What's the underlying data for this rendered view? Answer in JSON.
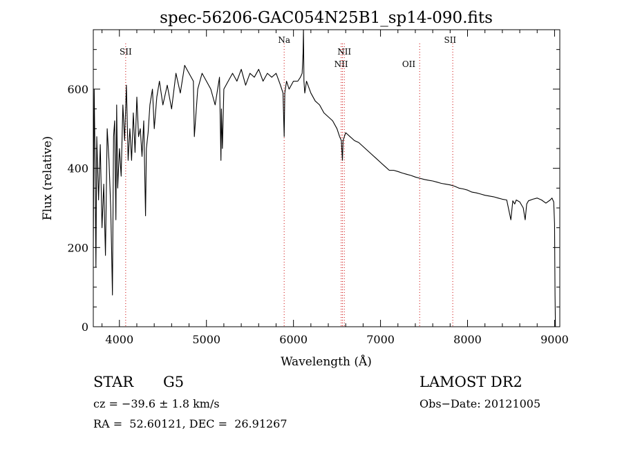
{
  "chart_data": {
    "type": "line",
    "title": "spec-56206-GAC054N25B1_sp14-090.fits",
    "xlabel": "Wavelength (Å)",
    "ylabel": "Flux (relative)",
    "xlim": [
      3700,
      9060
    ],
    "ylim": [
      0,
      750
    ],
    "xticks": [
      4000,
      5000,
      6000,
      7000,
      8000,
      9000
    ],
    "yticks": [
      0,
      200,
      400,
      600
    ],
    "grid": false,
    "series_color": "#000000",
    "line_color": "#cc0000",
    "series": [
      {
        "x": [
          3700,
          3710,
          3720,
          3730,
          3740,
          3760,
          3780,
          3800,
          3820,
          3840,
          3860,
          3880,
          3900,
          3910,
          3920,
          3933,
          3945,
          3960,
          3968,
          3980,
          4000,
          4020,
          4040,
          4060,
          4080,
          4100,
          4120,
          4140,
          4160,
          4180,
          4200,
          4220,
          4240,
          4260,
          4280,
          4300,
          4310,
          4330,
          4350,
          4380,
          4400,
          4430,
          4460,
          4500,
          4550,
          4600,
          4650,
          4700,
          4750,
          4800,
          4850,
          4861,
          4900,
          4950,
          5000,
          5050,
          5100,
          5150,
          5167,
          5172,
          5183,
          5200,
          5250,
          5300,
          5350,
          5400,
          5450,
          5500,
          5550,
          5600,
          5650,
          5700,
          5750,
          5800,
          5850,
          5880,
          5893,
          5900,
          5920,
          5950,
          6000,
          6050,
          6080,
          6100,
          6110,
          6115,
          6120,
          6130,
          6150,
          6200,
          6250,
          6300,
          6350,
          6400,
          6450,
          6500,
          6530,
          6550,
          6563,
          6570,
          6600,
          6650,
          6700,
          6750,
          6800,
          6850,
          6900,
          6950,
          7000,
          7050,
          7100,
          7150,
          7200,
          7250,
          7300,
          7350,
          7400,
          7450,
          7500,
          7550,
          7600,
          7650,
          7700,
          7750,
          7800,
          7850,
          7900,
          7950,
          8000,
          8050,
          8100,
          8150,
          8200,
          8250,
          8300,
          8350,
          8400,
          8450,
          8498,
          8520,
          8542,
          8560,
          8600,
          8640,
          8662,
          8680,
          8700,
          8750,
          8800,
          8850,
          8900,
          8950,
          8970,
          8990,
          9000,
          9005,
          9010
        ],
        "y": [
          200,
          600,
          420,
          150,
          480,
          320,
          460,
          250,
          360,
          180,
          500,
          420,
          300,
          200,
          80,
          480,
          520,
          270,
          560,
          350,
          450,
          380,
          560,
          470,
          610,
          420,
          500,
          420,
          540,
          440,
          580,
          480,
          500,
          430,
          520,
          280,
          450,
          490,
          560,
          600,
          500,
          580,
          620,
          560,
          610,
          550,
          640,
          590,
          660,
          640,
          620,
          480,
          600,
          640,
          620,
          600,
          560,
          630,
          420,
          550,
          450,
          600,
          620,
          640,
          620,
          650,
          610,
          640,
          630,
          650,
          620,
          640,
          630,
          640,
          610,
          590,
          480,
          590,
          620,
          600,
          620,
          620,
          630,
          640,
          690,
          750,
          620,
          590,
          620,
          590,
          570,
          560,
          540,
          530,
          520,
          500,
          480,
          470,
          420,
          470,
          490,
          480,
          470,
          465,
          455,
          445,
          435,
          425,
          415,
          405,
          395,
          395,
          392,
          388,
          385,
          382,
          378,
          375,
          372,
          370,
          368,
          365,
          362,
          360,
          358,
          355,
          350,
          348,
          345,
          340,
          338,
          335,
          332,
          330,
          328,
          325,
          322,
          320,
          270,
          318,
          310,
          320,
          315,
          300,
          270,
          310,
          318,
          322,
          325,
          320,
          312,
          320,
          325,
          315,
          260,
          80,
          0
        ]
      }
    ],
    "annotations": [
      {
        "label": "SII",
        "x": 4072,
        "row": 1
      },
      {
        "label": "Na",
        "x": 5893,
        "row": 0
      },
      {
        "label": "NII",
        "x": 6548,
        "row": 2
      },
      {
        "label": "NII",
        "x": 6584,
        "row": 1
      },
      {
        "label": "OII",
        "x": 7325,
        "row": 2
      },
      {
        "label": "SII",
        "x": 7800,
        "row": 0
      }
    ],
    "marker_lines": [
      4072,
      5893,
      6548,
      6563,
      6584,
      7450,
      7830
    ]
  },
  "info": {
    "object_class": "STAR",
    "subclass": "G5",
    "survey": "LAMOST DR2",
    "cz": "cz = −39.6 ± 1.8 km/s",
    "obs_date": "Obs−Date: 20121005",
    "coords": "RA =  52.60121, DEC =  26.91267"
  }
}
